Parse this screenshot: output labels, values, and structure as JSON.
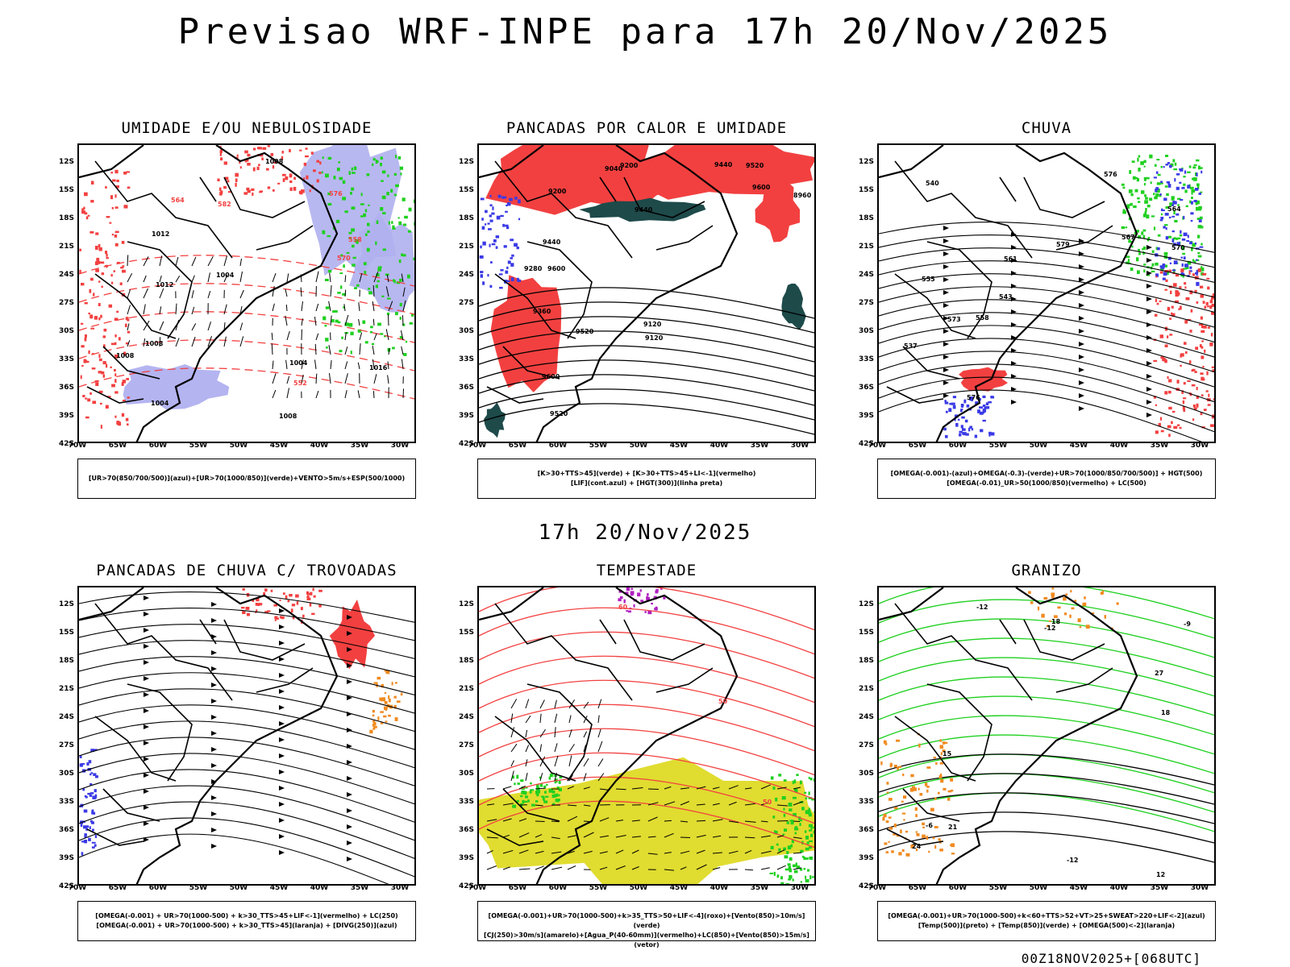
{
  "title": "Previsao WRF-INPE  para 17h 20/Nov/2025",
  "subtitle": "17h 20/Nov/2025",
  "run_label": "00Z18NOV2025+[068UTC]",
  "lat_labels": [
    "12S",
    "15S",
    "18S",
    "21S",
    "24S",
    "27S",
    "30S",
    "33S",
    "36S",
    "39S",
    "42S"
  ],
  "lon_labels": [
    "70W",
    "65W",
    "60W",
    "55W",
    "50W",
    "45W",
    "40W",
    "35W",
    "30W"
  ],
  "colors": {
    "red": "#f24040",
    "blue": "#3a3ae6",
    "green": "#20d020",
    "lavender": "#b0b0f0",
    "teal": "#1e4a4a",
    "yellow": "#e0dc30",
    "orange": "#f08a20",
    "purple": "#b020c0"
  },
  "panels": [
    {
      "title": "UMIDADE E/OU NEBULOSIDADE",
      "legend": [
        "[UR>70(850/700/500)](azul)+[UR>70(1000/850)](verde)+VENTO>5m/s+ESP(500/1000)"
      ],
      "labels": [
        "1004",
        "1004",
        "1008",
        "1012",
        "1008",
        "1016",
        "1004",
        "1008",
        "1012",
        "1008",
        "558",
        "564",
        "570",
        "576",
        "582",
        "552"
      ]
    },
    {
      "title": "PANCADAS POR CALOR E UMIDADE",
      "legend": [
        "[K>30+TTS>45](verde) + [K>30+TTS>45+LI<-1](vermelho)",
        "[LIF](cont.azul) + [HGT(300)](linha preta)"
      ],
      "labels": [
        "9600",
        "9600",
        "9600",
        "9520",
        "9520",
        "9520",
        "9440",
        "9440",
        "9440",
        "9360",
        "9280",
        "9200",
        "9200",
        "9120",
        "9120",
        "9040",
        "8960"
      ]
    },
    {
      "title": "CHUVA",
      "legend": [
        "[OMEGA(-0.001)-(azul)+OMEGA(-0.3)-(verde)+UR>70(1000/850/700/500)] + HGT(500)",
        "[OMEGA(-0.01)_UR>50(1000/850)(vermelho) + LC(500)"
      ],
      "labels": [
        "579",
        "576",
        "576",
        "573",
        "570",
        "567",
        "564",
        "561",
        "558",
        "555",
        "543",
        "540",
        "537"
      ]
    },
    {
      "title": "PANCADAS DE CHUVA C/ TROVOADAS",
      "legend": [
        "[OMEGA(-0.001) + UR>70(1000-500) + k>30_TTS>45+LIF<-1](vermelho) + LC(250)",
        "[OMEGA(-0.001) + UR>70(1000-500) + k>30_TTS>45](laranja) + [DIVG(250)](azul)"
      ],
      "labels": []
    },
    {
      "title": "TEMPESTADE",
      "legend": [
        "[OMEGA(-0.001)+UR>70(1000-500)+k>35_TTS>50+LIF<-4](roxo)+[Vento(850)>10m/s](verde)",
        "[CJ(250)>30m/s](amarelo)+[Agua_P(40-60mm)](vermelho)+LC(850)+[Vento(850)>15m/s](vetor)"
      ],
      "labels": [
        "50",
        "50",
        "60"
      ]
    },
    {
      "title": "GRANIZO",
      "legend": [
        "[OMEGA(-0.001)+UR>70(1000-500)+k<60+TTS>52+VT>25+SWEAT>220+LIF<-2](azul)",
        "[Temp(500)](preto) + [Temp(850)](verde) + [OMEGA(500)<-2](laranja)"
      ],
      "labels": [
        "-12",
        "-12",
        "-12",
        "15",
        "18",
        "18",
        "21",
        "24",
        "27",
        "-9",
        "-6",
        "12"
      ]
    }
  ]
}
